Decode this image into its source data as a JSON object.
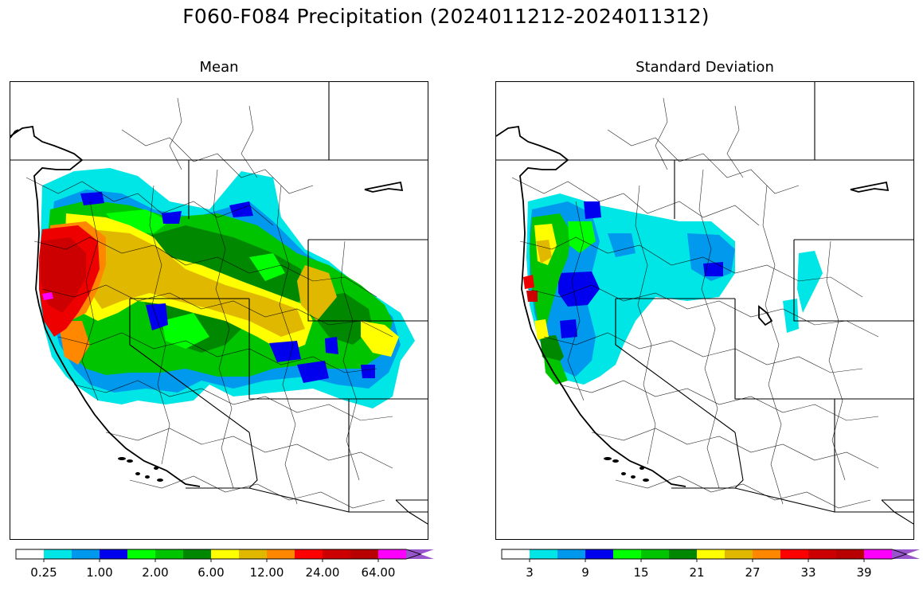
{
  "figure": {
    "title": "F060-F084 Precipitation (2024011212-2024011312)"
  },
  "panels": [
    {
      "title": "Mean",
      "colorbar": {
        "colors": [
          "#ffffff",
          "#00e5e5",
          "#0099ee",
          "#0000ee",
          "#00ff00",
          "#00c400",
          "#008800",
          "#ffff00",
          "#e0b800",
          "#ff8800",
          "#ff0000",
          "#cc0000",
          "#b80000",
          "#ff00ff",
          "#9955cc"
        ],
        "extend": "max",
        "tick_labels": [
          "0.25",
          "1.00",
          "2.00",
          "6.00",
          "12.00",
          "24.00",
          "64.00"
        ],
        "tick_boundary_index": [
          1,
          3,
          5,
          7,
          9,
          11,
          13
        ]
      }
    },
    {
      "title": "Standard Deviation",
      "colorbar": {
        "colors": [
          "#ffffff",
          "#00e5e5",
          "#0099ee",
          "#0000ee",
          "#00ff00",
          "#00c400",
          "#008800",
          "#ffff00",
          "#e0b800",
          "#ff8800",
          "#ff0000",
          "#cc0000",
          "#b80000",
          "#ff00ff",
          "#9955cc"
        ],
        "extend": "max",
        "tick_labels": [
          "3",
          "9",
          "15",
          "21",
          "27",
          "33",
          "39"
        ],
        "tick_boundary_index": [
          1,
          3,
          5,
          7,
          9,
          11,
          13
        ]
      }
    }
  ]
}
